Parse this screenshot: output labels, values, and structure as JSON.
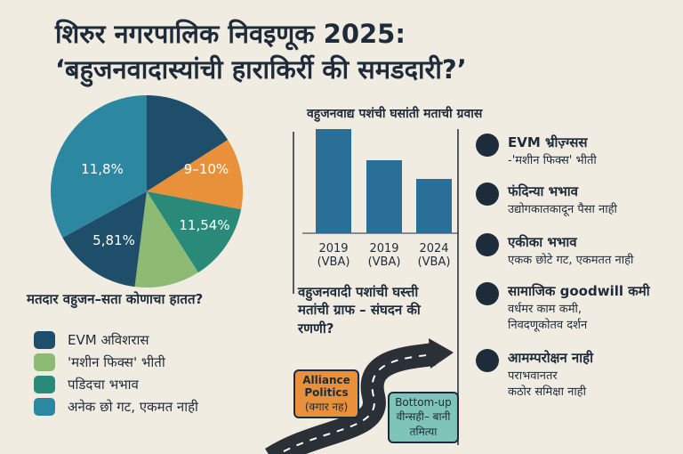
{
  "header": {
    "title_line1": "शिरुर नगरपालिक निवइणूक 2025:",
    "title_line2": "‘बहुजनवादास्यांची हाराकिर्री की समडदारी?’"
  },
  "chart_data": [
    {
      "type": "pie",
      "values": [
        16,
        12,
        13,
        11,
        15,
        33
      ],
      "colors": [
        "#1f4e6b",
        "#e8913a",
        "#2a8a7a",
        "#8dbb73",
        "#1f4e6b",
        "#2c87a0"
      ],
      "annotations": [
        "11,8%",
        "9–10%",
        "11,54%",
        "5,81%"
      ],
      "caption": "मतदार वहुजन–सता कोणाचा हातत?"
    },
    {
      "type": "bar",
      "title": "वहुजनवाद्य पशंची घसांती मताची ग्रवास",
      "categories": [
        "2019 (VBA)",
        "2019 (VBA)",
        "2024 (VBA)"
      ],
      "values": [
        40,
        28,
        21
      ],
      "color": "#2a6f97",
      "ylim": [
        0,
        40
      ]
    }
  ],
  "legend": [
    {
      "label": "EVM अविशरास",
      "color": "#1f4e6b"
    },
    {
      "label": "'मशीन फिक्स' भीती",
      "color": "#8dbb73"
    },
    {
      "label": "पडिदचा भभाव",
      "color": "#2a8a7a"
    },
    {
      "label": "अनेक छो गट, एकमत नाही",
      "color": "#2c87a0"
    }
  ],
  "middle": {
    "question": "वहुजनवादी पशांची घस्त्ती मतांची ग्राफ – संघदन की रणणी?",
    "box1": {
      "title": "Alliance Politics",
      "sub": "(क्गार नह)"
    },
    "box2": {
      "title": "Bottom-up",
      "sub": "वीन्सही– बानी तमित्या"
    }
  },
  "items": [
    {
      "title": "EVM भ्रीज़्ग्सस",
      "lines": [
        "-'मशीन फिक्स' भीती"
      ]
    },
    {
      "title": "फंदिन्या भभाव",
      "lines": [
        "उद्योगकातकादून पैसा नाही"
      ]
    },
    {
      "title": "एकीका भभाव",
      "lines": [
        "एकक छोटे गट, एकमतत नाही"
      ]
    },
    {
      "title": "सामाजिक goodwill कमी",
      "lines": [
        "वर्धमर काम कमी,",
        "निवदणूकोतव दर्शन"
      ]
    },
    {
      "title": "आमम्परोक्षन नाही",
      "lines": [
        "पराभवानतर",
        "कठोर समिक्षा नाही"
      ]
    }
  ]
}
